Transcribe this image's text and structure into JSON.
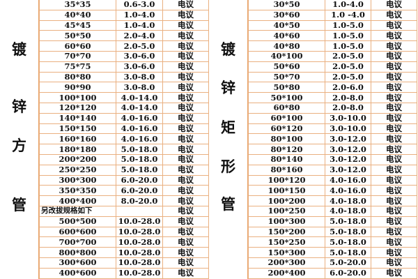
{
  "left": {
    "label_chars": [
      "镀",
      "锌",
      "方",
      "管"
    ],
    "rows": [
      [
        "35*35",
        "0.6-3.0",
        "电议"
      ],
      [
        "40*40",
        "1.0-4.0",
        "电议"
      ],
      [
        "45*45",
        "1.0-4.0",
        "电议"
      ],
      [
        "50*50",
        "2.0-4.0",
        "电议"
      ],
      [
        "60*60",
        "2.0-5.0",
        "电议"
      ],
      [
        "70*70",
        "3.0-6.0",
        "电议"
      ],
      [
        "75*75",
        "3.0-6.0",
        "电议"
      ],
      [
        "80*80",
        "3.0-8.0",
        "电议"
      ],
      [
        "90*90",
        "3.0-8.0",
        "电议"
      ],
      [
        "100*100",
        "4.0-14.0",
        "电议"
      ],
      [
        "120*120",
        "4.0-14.0",
        "电议"
      ],
      [
        "140*140",
        "4.0-16.0",
        "电议"
      ],
      [
        "150*150",
        "4.0-16.0",
        "电议"
      ],
      [
        "160*160",
        "4.0-16.0",
        "电议"
      ],
      [
        "180*180",
        "5.0-18.0",
        "电议"
      ],
      [
        "200*200",
        "5.0-18.0",
        "电议"
      ],
      [
        "250*250",
        "5.0-18.0",
        "电议"
      ],
      [
        "300*300",
        "6.0-20.0",
        "电议"
      ],
      [
        "350*350",
        "6.0-20.0",
        "电议"
      ],
      [
        "400*400",
        "8.0-20.0",
        "电议"
      ],
      [
        "另改拔规格如下",
        "",
        "电议"
      ],
      [
        "500*500",
        "10.0-28.0",
        "电议"
      ],
      [
        "600*600",
        "10.0-28.0",
        "电议"
      ],
      [
        "700*700",
        "10.0-28.0",
        "电议"
      ],
      [
        "800*800",
        "10.0-28.0",
        "电议"
      ],
      [
        "300*600",
        "10.0-28.0",
        "电议"
      ],
      [
        "400*600",
        "10.0-28.0",
        "电议"
      ]
    ]
  },
  "right": {
    "label_chars": [
      "镀",
      "锌",
      "矩",
      "形",
      "管"
    ],
    "rows": [
      [
        "30*50",
        "1.0-4.0",
        "电议"
      ],
      [
        "30*60",
        "1.0 -4.0",
        "电议"
      ],
      [
        "40*50",
        "1.0-5.0",
        "电议"
      ],
      [
        "40*60",
        "1.0-5.0",
        "电议"
      ],
      [
        "40*80",
        "1.0-5.0",
        "电议"
      ],
      [
        "40*100",
        "2.0-5.0",
        "电议"
      ],
      [
        "50*60",
        "2.0-5.0",
        "电议"
      ],
      [
        "50*70",
        "2.0-5.0",
        "电议"
      ],
      [
        "50*80",
        "2.0-6.0",
        "电议"
      ],
      [
        "50*100",
        "2.0-8.0",
        "电议"
      ],
      [
        "60*80",
        "2.0-8.0",
        "电议"
      ],
      [
        "60*100",
        "3.0-10.0",
        "电议"
      ],
      [
        "60*120",
        "3.0-10.0",
        "电议"
      ],
      [
        "80*100",
        "3.0-12.0",
        "电议"
      ],
      [
        "80*120",
        "3.0-12.0",
        "电议"
      ],
      [
        "80*140",
        "3.0-12.0",
        "电议"
      ],
      [
        "80*160",
        "3.0-12.0",
        "电议"
      ],
      [
        "100*120",
        "4.0-16.0",
        "电议"
      ],
      [
        "100*150",
        "4.0-16.0",
        "电议"
      ],
      [
        "100*200",
        "4.0-18.0",
        "电议"
      ],
      [
        "100*250",
        "4.0-18.0",
        "电议"
      ],
      [
        "100*300",
        "5.0-18.0",
        "电议"
      ],
      [
        "150*200",
        "5.0-18.0",
        "电议"
      ],
      [
        "150*250",
        "5.0-18.0",
        "电议"
      ],
      [
        "150*300",
        "5.0-18.0",
        "电议"
      ],
      [
        "200*300",
        "5.0-20.0",
        "电议"
      ],
      [
        "200*400",
        "6.0-20.0",
        "电议"
      ]
    ]
  },
  "colors": {
    "border": "#eab080",
    "text": "#111111"
  }
}
